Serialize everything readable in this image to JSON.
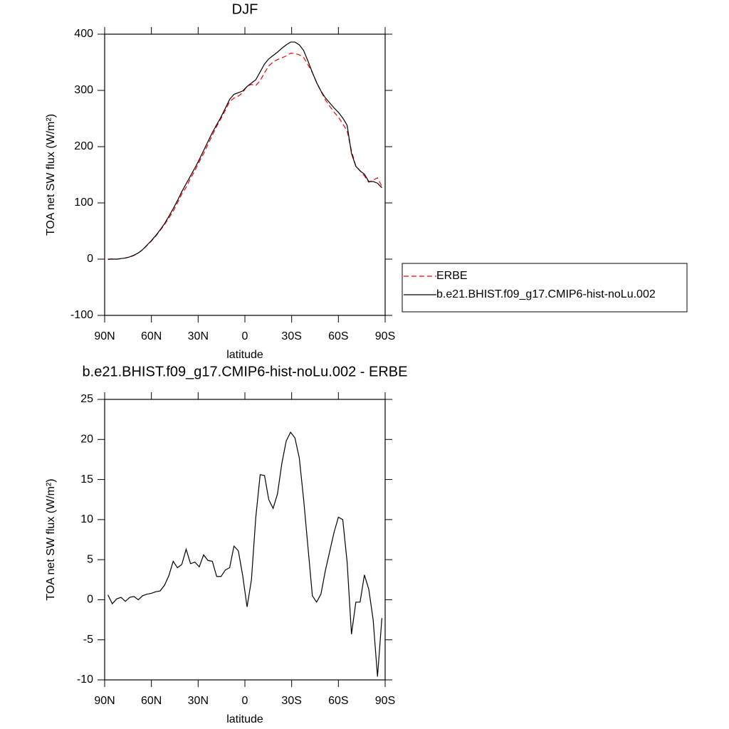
{
  "chart_data": [
    {
      "type": "line",
      "title": "DJF",
      "xlabel": "latitude",
      "ylabel": "TOA net SW flux (W/m²)",
      "x": [
        87.9,
        85.1,
        82.3,
        79.5,
        76.7,
        73.9,
        71.2,
        68.4,
        65.6,
        62.8,
        60.0,
        57.2,
        54.4,
        51.6,
        48.8,
        46.0,
        43.3,
        40.5,
        37.7,
        34.9,
        32.1,
        29.3,
        26.5,
        23.7,
        20.9,
        18.1,
        15.3,
        12.6,
        9.8,
        7.0,
        4.2,
        1.4,
        -1.4,
        -4.2,
        -7.0,
        -9.8,
        -12.6,
        -15.3,
        -18.1,
        -20.9,
        -23.7,
        -26.5,
        -29.3,
        -32.1,
        -34.9,
        -37.7,
        -40.5,
        -43.3,
        -46.0,
        -48.8,
        -51.6,
        -54.4,
        -57.2,
        -60.0,
        -62.8,
        -65.6,
        -68.4,
        -71.2,
        -73.9,
        -76.7,
        -79.5,
        -82.3,
        -85.1,
        -87.9
      ],
      "xlim": [
        90,
        -90
      ],
      "xticks": [
        {
          "value": 90,
          "label": "90N"
        },
        {
          "value": 60,
          "label": "60N"
        },
        {
          "value": 30,
          "label": "30N"
        },
        0,
        {
          "value": -30,
          "label": "30S"
        },
        {
          "value": -60,
          "label": "60S"
        },
        {
          "value": -90,
          "label": "90S"
        }
      ],
      "ylim": [
        -100,
        400
      ],
      "yticks": [
        -100,
        0,
        100,
        200,
        300,
        400
      ],
      "legend": "right",
      "series": [
        {
          "name": "ERBE",
          "color": "#ff0000",
          "dashed": true,
          "values": [
            -0.6,
            0.5,
            -0.1,
            0.7,
            2.2,
            3.7,
            6.6,
            11,
            16.5,
            24.3,
            32.2,
            41,
            50.9,
            61.2,
            73,
            85.2,
            100,
            115.6,
            127.7,
            143.5,
            157.3,
            172.9,
            187.4,
            204.1,
            220.2,
            236.1,
            250.1,
            264.3,
            280,
            286.3,
            289.9,
            296,
            307.9,
            310.5,
            308.7,
            317.4,
            331.5,
            343.5,
            350.6,
            354.8,
            358,
            361.2,
            366.1,
            365.8,
            363.3,
            358.5,
            345.5,
            331.5,
            314.3,
            298.3,
            283.4,
            272,
            261.6,
            252.5,
            240.7,
            228,
            192.7,
            165.3,
            157.3,
            147.9,
            136.7,
            140.5,
            144.6,
            129.3
          ]
        },
        {
          "name": "b.e21.BHIST.f09_g17.CMIP6-hist-noLu.002",
          "color": "#000000",
          "dashed": false,
          "values": [
            0,
            0,
            0,
            1,
            2,
            4,
            7,
            11,
            17,
            25,
            33,
            42,
            52,
            63,
            76,
            90,
            104,
            120,
            134,
            148,
            162,
            177,
            193,
            209,
            225,
            239,
            253,
            268,
            284,
            293,
            296,
            299,
            307,
            313,
            319,
            333,
            347,
            356,
            362,
            368,
            375,
            381,
            386,
            386,
            381,
            371,
            352,
            332,
            314,
            299,
            287,
            278,
            269,
            261,
            251,
            238,
            188,
            165,
            157,
            151,
            138,
            138,
            135,
            127
          ]
        }
      ]
    },
    {
      "type": "line",
      "title": "b.e21.BHIST.f09_g17.CMIP6-hist-noLu.002 - ERBE",
      "xlabel": "latitude",
      "ylabel": "TOA net SW flux (W/m²)",
      "x": [
        87.9,
        85.1,
        82.3,
        79.5,
        76.7,
        73.9,
        71.2,
        68.4,
        65.6,
        62.8,
        60.0,
        57.2,
        54.4,
        51.6,
        48.8,
        46.0,
        43.3,
        40.5,
        37.7,
        34.9,
        32.1,
        29.3,
        26.5,
        23.7,
        20.9,
        18.1,
        15.3,
        12.6,
        9.8,
        7.0,
        4.2,
        1.4,
        -1.4,
        -4.2,
        -7.0,
        -9.8,
        -12.6,
        -15.3,
        -18.1,
        -20.9,
        -23.7,
        -26.5,
        -29.3,
        -32.1,
        -34.9,
        -37.7,
        -40.5,
        -43.3,
        -46.0,
        -48.8,
        -51.6,
        -54.4,
        -57.2,
        -60.0,
        -62.8,
        -65.6,
        -68.4,
        -71.2,
        -73.9,
        -76.7,
        -79.5,
        -82.3,
        -85.1,
        -87.9
      ],
      "xlim": [
        90,
        -90
      ],
      "xticks": [
        {
          "value": 90,
          "label": "90N"
        },
        {
          "value": 60,
          "label": "60N"
        },
        {
          "value": 30,
          "label": "30N"
        },
        0,
        {
          "value": -30,
          "label": "30S"
        },
        {
          "value": -60,
          "label": "60S"
        },
        {
          "value": -90,
          "label": "90S"
        }
      ],
      "ylim": [
        -10,
        25
      ],
      "yticks": [
        -10,
        -5,
        0,
        5,
        10,
        15,
        20,
        25
      ],
      "series": [
        {
          "color": "#000000",
          "dashed": false,
          "values": [
            0.6,
            -0.5,
            0.1,
            0.3,
            -0.2,
            0.3,
            0.4,
            0.0,
            0.5,
            0.7,
            0.8,
            1.0,
            1.1,
            1.8,
            3.0,
            4.8,
            4.0,
            4.4,
            6.3,
            4.5,
            4.7,
            4.1,
            5.6,
            4.9,
            4.8,
            2.9,
            2.9,
            3.7,
            4.0,
            6.7,
            6.1,
            3.0,
            -0.9,
            2.5,
            10.3,
            15.6,
            15.5,
            12.5,
            11.4,
            13.2,
            17.0,
            19.8,
            20.9,
            20.2,
            17.7,
            12.5,
            6.5,
            0.5,
            -0.3,
            0.7,
            3.6,
            6.0,
            8.4,
            10.3,
            10.0,
            4.7,
            -4.3,
            -0.3,
            -0.3,
            3.1,
            1.3,
            -2.5,
            -9.6,
            -2.3
          ]
        }
      ]
    }
  ]
}
